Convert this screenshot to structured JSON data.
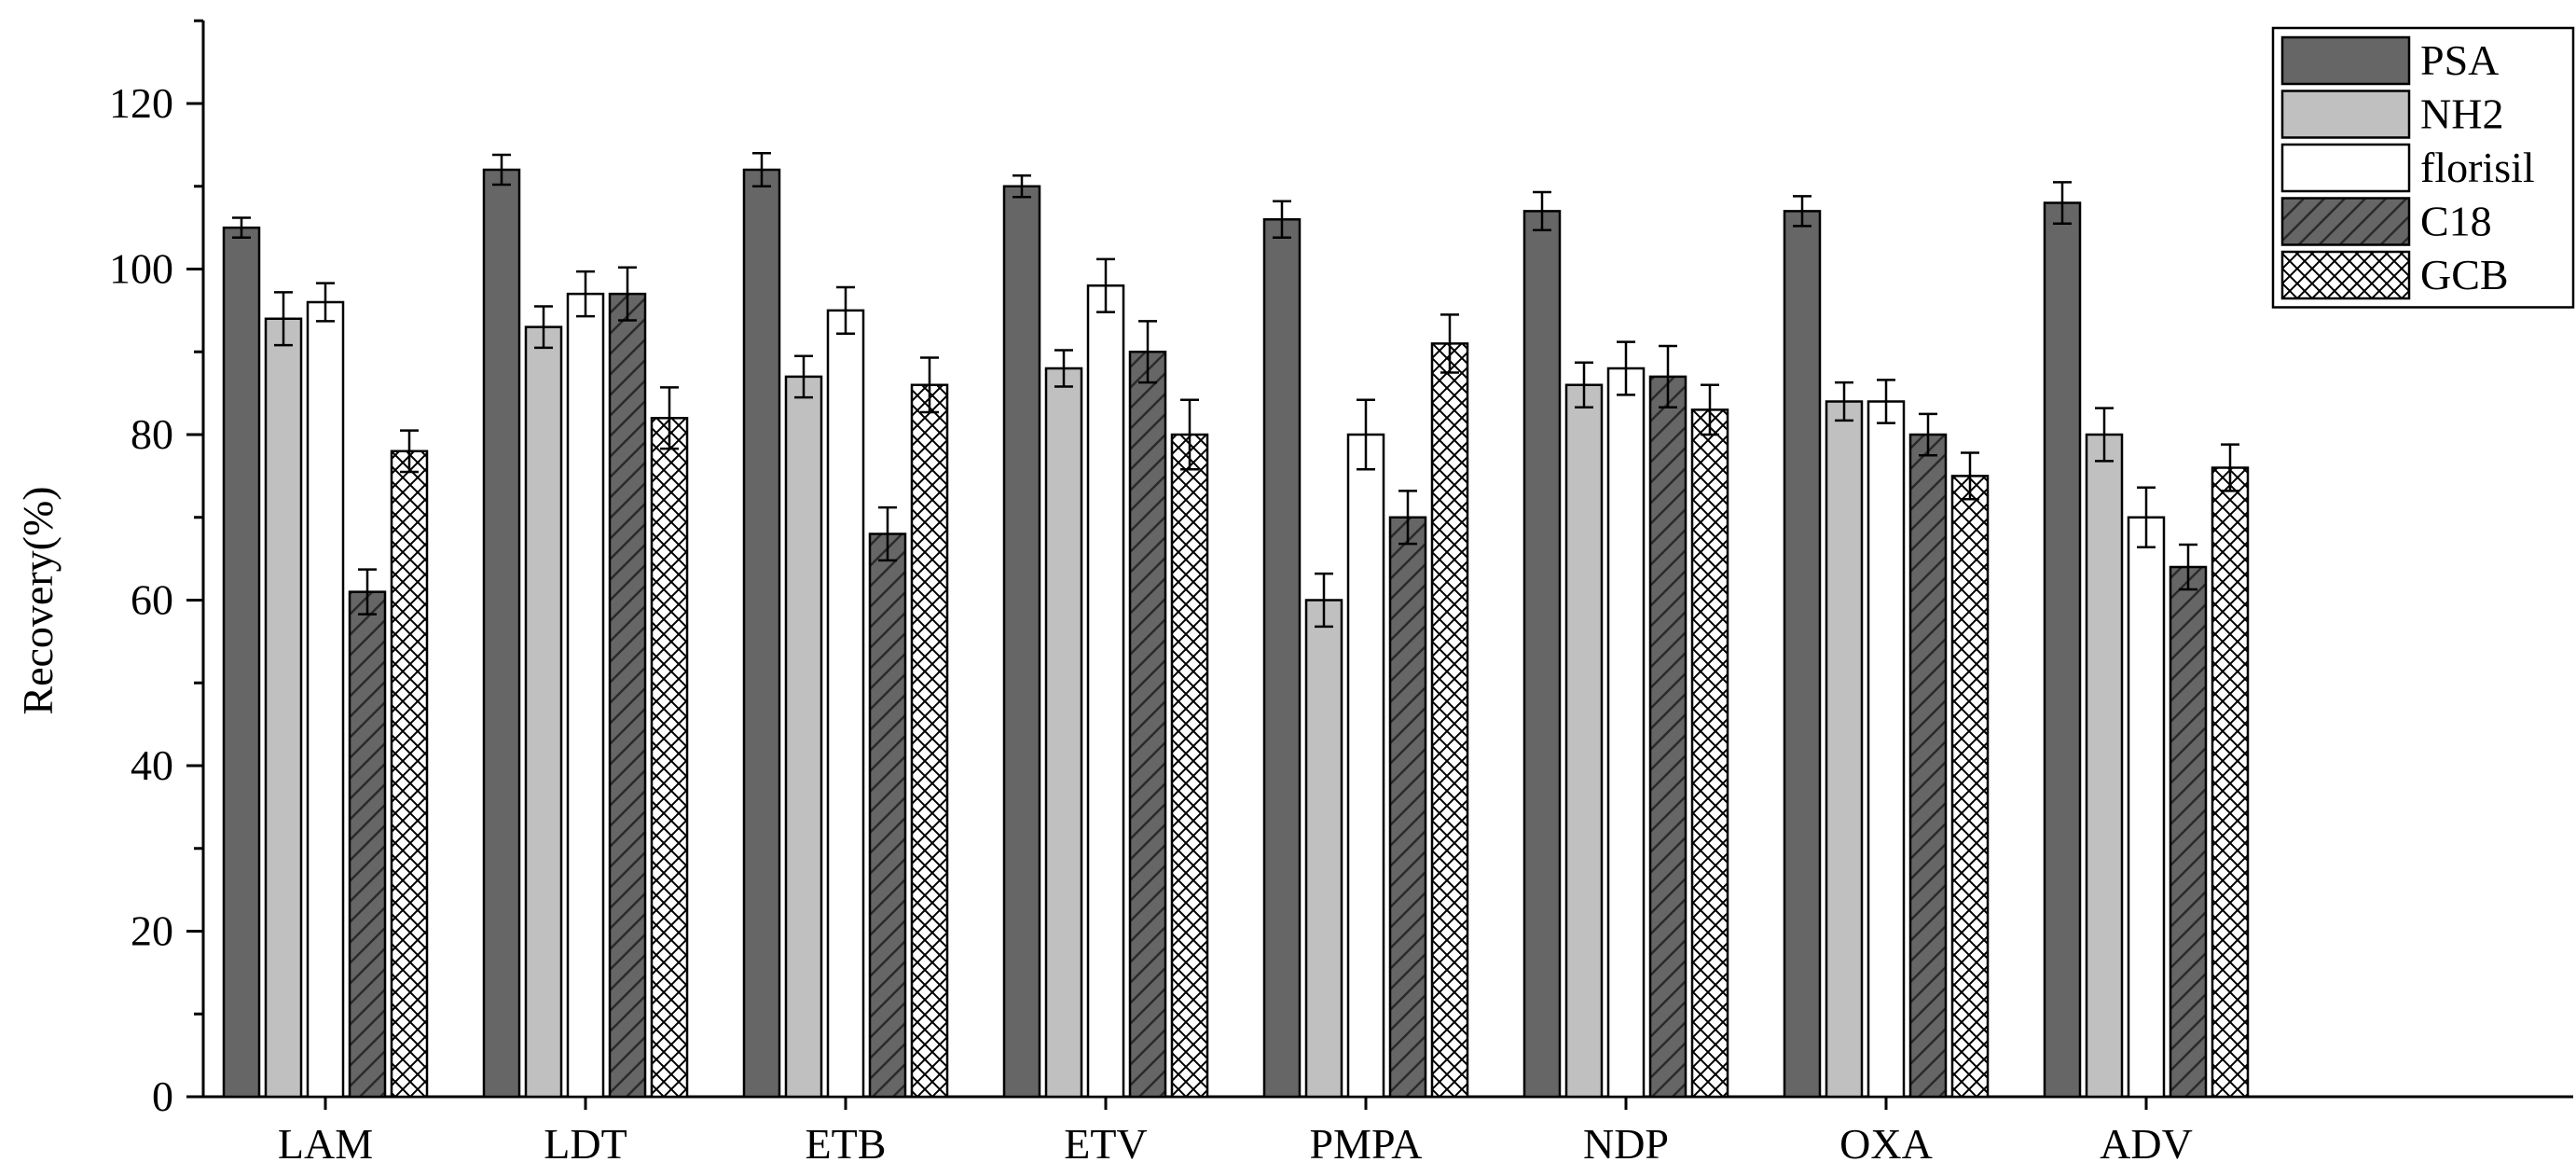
{
  "chart_data": {
    "type": "bar",
    "title": "",
    "xlabel": "",
    "ylabel": "Recovery(%)",
    "ylim": [
      0,
      130
    ],
    "yticks": [
      "0",
      "20",
      "40",
      "60",
      "80",
      "100",
      "120"
    ],
    "grid": false,
    "legend_position": "top-right",
    "categories": [
      "LAM",
      "LDT",
      "ETB",
      "ETV",
      "PMPA",
      "NDP",
      "OXA",
      "ADV"
    ],
    "series": [
      {
        "name": "PSA",
        "fill": "#666666",
        "pattern": "solid",
        "values": [
          105,
          112,
          112,
          110,
          106,
          107,
          107,
          108
        ],
        "errors": [
          1.2,
          1.8,
          2.0,
          1.3,
          2.2,
          2.3,
          1.8,
          2.5
        ]
      },
      {
        "name": "NH2",
        "fill": "#c0c0c0",
        "pattern": "solid",
        "values": [
          94,
          93,
          87,
          88,
          60,
          86,
          84,
          80
        ],
        "errors": [
          3.2,
          2.5,
          2.5,
          2.2,
          3.2,
          2.7,
          2.3,
          3.2
        ]
      },
      {
        "name": "florisil",
        "fill": "#ffffff",
        "pattern": "solid",
        "values": [
          96,
          97,
          95,
          98,
          80,
          88,
          84,
          70
        ],
        "errors": [
          2.3,
          2.7,
          2.8,
          3.2,
          4.2,
          3.2,
          2.6,
          3.6
        ]
      },
      {
        "name": "C18",
        "fill": "#666666",
        "pattern": "diagonal",
        "values": [
          61,
          97,
          68,
          90,
          70,
          87,
          80,
          64
        ],
        "errors": [
          2.7,
          3.2,
          3.2,
          3.7,
          3.2,
          3.7,
          2.5,
          2.7
        ]
      },
      {
        "name": "GCB",
        "fill": "#ffffff",
        "pattern": "crosshatch",
        "values": [
          78,
          82,
          86,
          80,
          91,
          83,
          75,
          76
        ],
        "errors": [
          2.5,
          3.7,
          3.3,
          4.2,
          3.5,
          3.0,
          2.8,
          2.8
        ]
      }
    ]
  }
}
